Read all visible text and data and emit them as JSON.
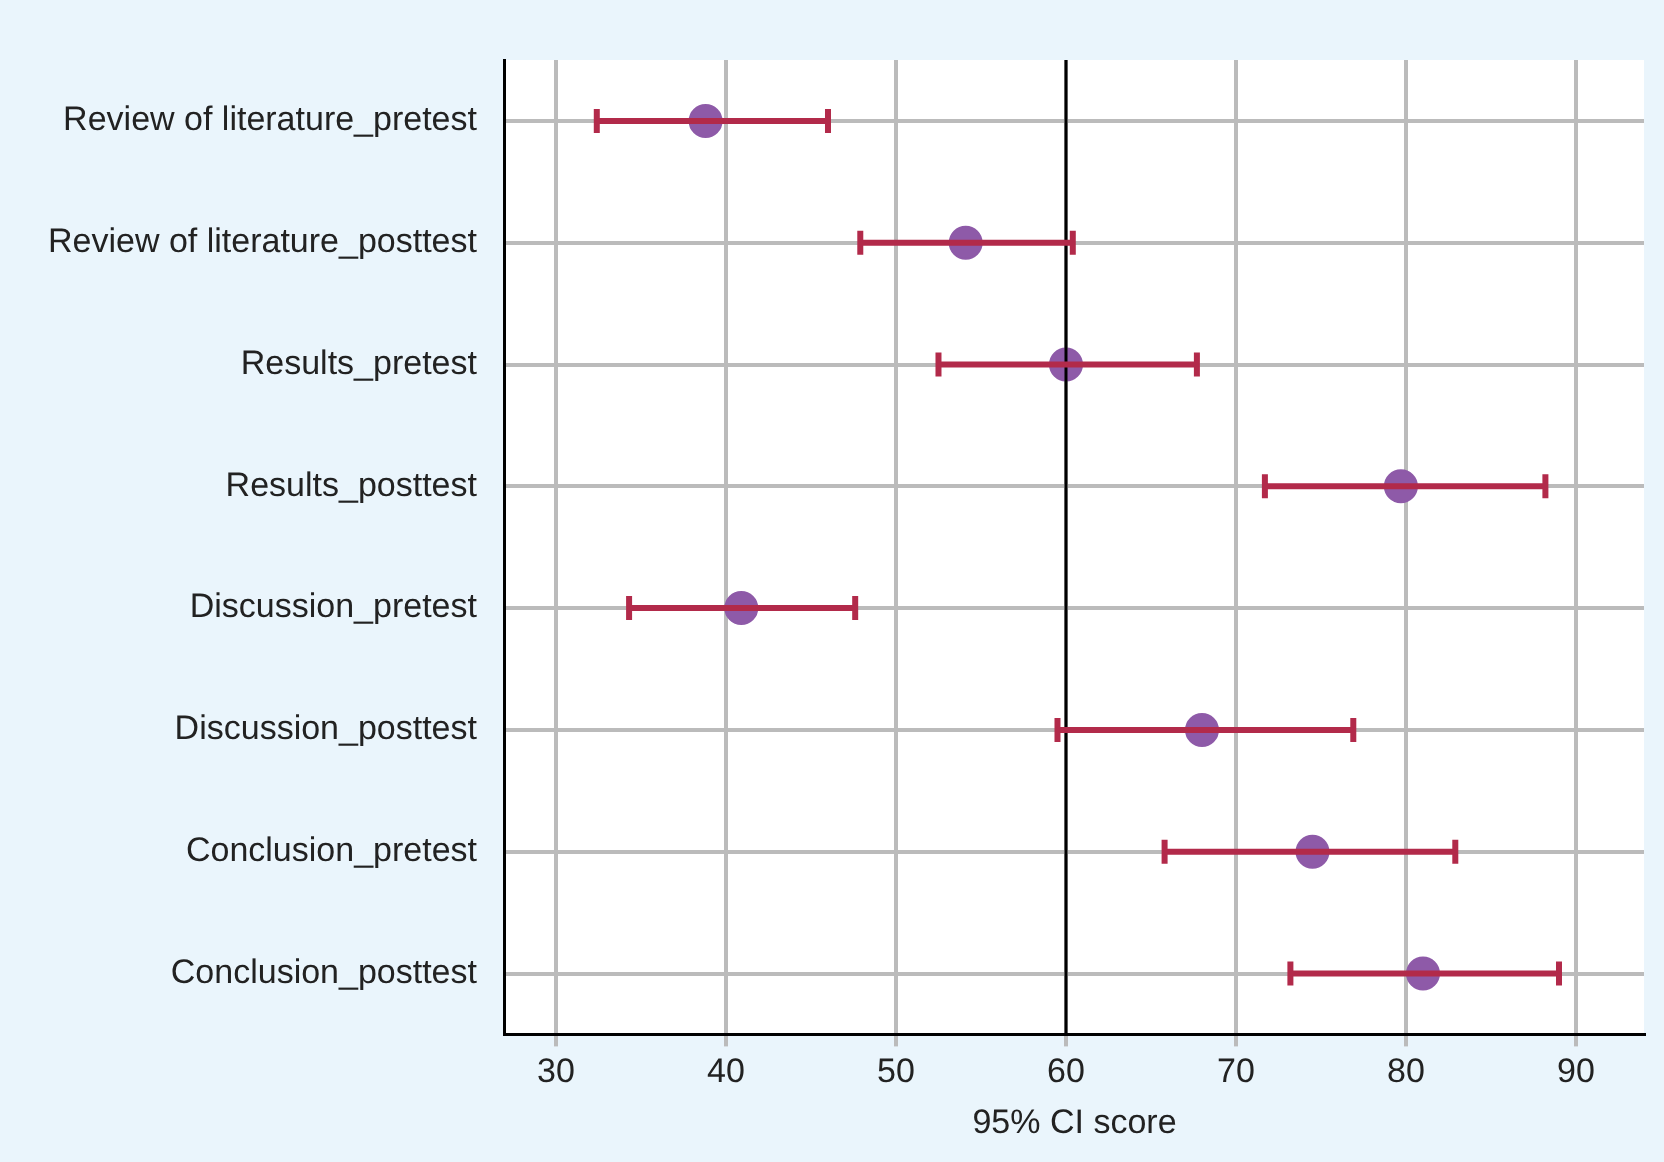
{
  "chart_data": {
    "type": "scatter",
    "xlabel": "95% CI score",
    "categories": [
      "Review of literature_pretest",
      "Review of literature_posttest",
      "Results_pretest",
      "Results_posttest",
      "Discussion_pretest",
      "Discussion_posttest",
      "Conclusion_pretest",
      "Conclusion_posttest"
    ],
    "series": [
      {
        "color": "#8e5aa8",
        "values": [
          38.8,
          54.1,
          60.0,
          79.7,
          40.9,
          68.0,
          74.5,
          81.0
        ],
        "errors": [
          [
            32.4,
            46.0
          ],
          [
            47.9,
            60.4
          ],
          [
            52.5,
            67.7
          ],
          [
            71.7,
            88.2
          ],
          [
            34.3,
            47.6
          ],
          [
            59.5,
            76.9
          ],
          [
            65.8,
            82.9
          ],
          [
            73.2,
            89.0
          ]
        ]
      }
    ],
    "orientation": "horizontal",
    "xlim": [
      27,
      94
    ],
    "xticks": [
      30,
      40,
      50,
      60,
      70,
      80,
      90
    ],
    "ref_lines": [
      {
        "axis": "x",
        "value": 60,
        "color": "#000000"
      }
    ],
    "grid": true,
    "legend": false,
    "marker": "circle"
  }
}
